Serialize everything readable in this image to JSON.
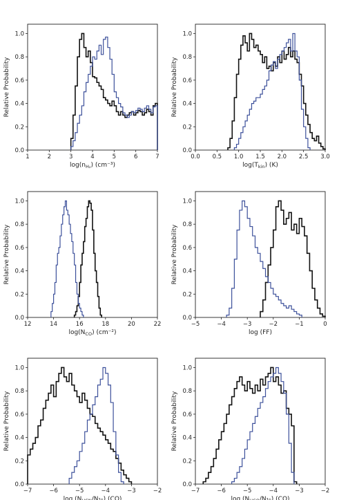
{
  "colors": {
    "series_black": "#111111",
    "series_blue": "#3b4f9a",
    "axis": "#222222"
  },
  "chart_data": [
    {
      "type": "step",
      "xlabel": "log(n",
      "xlabel_sub": "H₂",
      "xlabel_unit": ") (cm⁻³)",
      "ylabel": "Relative Probability",
      "xlim": [
        1,
        7
      ],
      "ylim": [
        0,
        1.08
      ],
      "xticks": [
        "1",
        "2",
        "3",
        "4",
        "5",
        "6",
        "7"
      ],
      "yticks": [
        "0.0",
        "0.2",
        "0.4",
        "0.6",
        "0.8",
        "1.0"
      ],
      "series": [
        {
          "color": "black",
          "x": [
            3.0,
            3.1,
            3.2,
            3.3,
            3.4,
            3.5,
            3.6,
            3.7,
            3.8,
            3.9,
            4.0,
            4.1,
            4.2,
            4.3,
            4.4,
            4.5,
            4.6,
            4.7,
            4.8,
            4.9,
            5.0,
            5.1,
            5.2,
            5.3,
            5.4,
            5.5,
            5.6,
            5.7,
            5.8,
            5.9,
            6.0,
            6.1,
            6.2,
            6.3,
            6.4,
            6.5,
            6.6,
            6.7,
            6.8,
            6.9,
            7.0
          ],
          "y": [
            0.1,
            0.3,
            0.55,
            0.8,
            0.95,
            1.0,
            0.88,
            0.8,
            0.85,
            0.75,
            0.63,
            0.62,
            0.58,
            0.55,
            0.52,
            0.45,
            0.43,
            0.4,
            0.38,
            0.42,
            0.38,
            0.33,
            0.3,
            0.33,
            0.3,
            0.28,
            0.3,
            0.32,
            0.33,
            0.3,
            0.32,
            0.34,
            0.33,
            0.3,
            0.32,
            0.35,
            0.33,
            0.3,
            0.38,
            0.4,
            0.3
          ]
        },
        {
          "color": "blue",
          "x": [
            3.0,
            3.1,
            3.2,
            3.3,
            3.4,
            3.5,
            3.6,
            3.7,
            3.8,
            3.9,
            4.0,
            4.1,
            4.2,
            4.3,
            4.4,
            4.5,
            4.6,
            4.7,
            4.8,
            4.9,
            5.0,
            5.1,
            5.2,
            5.3,
            5.4,
            5.5,
            5.6,
            5.7,
            5.8,
            5.9,
            6.0,
            6.1,
            6.2,
            6.3,
            6.4,
            6.5,
            6.6,
            6.7,
            6.8,
            6.9,
            7.0
          ],
          "y": [
            0.03,
            0.08,
            0.15,
            0.23,
            0.3,
            0.38,
            0.5,
            0.58,
            0.65,
            0.72,
            0.8,
            0.78,
            0.85,
            0.9,
            0.82,
            0.95,
            0.97,
            0.88,
            0.78,
            0.65,
            0.5,
            0.45,
            0.4,
            0.37,
            0.32,
            0.3,
            0.28,
            0.3,
            0.33,
            0.32,
            0.34,
            0.36,
            0.35,
            0.33,
            0.36,
            0.38,
            0.35,
            0.32,
            0.37,
            0.38,
            0.2
          ]
        }
      ]
    },
    {
      "type": "step",
      "xlabel": "log(T",
      "xlabel_sub": "kin",
      "xlabel_unit": ") (K)",
      "ylabel": "Relative Probability",
      "xlim": [
        0,
        3
      ],
      "ylim": [
        0,
        1.08
      ],
      "xticks": [
        "0.0",
        "0.5",
        "1.0",
        "1.5",
        "2.0",
        "2.5",
        "3.0"
      ],
      "yticks": [
        "0.0",
        "0.2",
        "0.4",
        "0.6",
        "0.8",
        "1.0"
      ],
      "series": [
        {
          "color": "black",
          "x": [
            0.75,
            0.8,
            0.85,
            0.9,
            0.95,
            1.0,
            1.05,
            1.1,
            1.15,
            1.2,
            1.25,
            1.3,
            1.35,
            1.4,
            1.45,
            1.5,
            1.55,
            1.6,
            1.65,
            1.7,
            1.75,
            1.8,
            1.85,
            1.9,
            1.95,
            2.0,
            2.05,
            2.1,
            2.15,
            2.2,
            2.25,
            2.3,
            2.35,
            2.4,
            2.45,
            2.5,
            2.55,
            2.6,
            2.65,
            2.7,
            2.75,
            2.8,
            2.85,
            2.9,
            2.95
          ],
          "y": [
            0.02,
            0.1,
            0.25,
            0.45,
            0.65,
            0.78,
            0.9,
            0.98,
            0.92,
            0.85,
            1.0,
            0.95,
            0.88,
            0.9,
            0.85,
            0.82,
            0.75,
            0.8,
            0.7,
            0.72,
            0.68,
            0.75,
            0.72,
            0.8,
            0.75,
            0.85,
            0.78,
            0.82,
            0.88,
            0.8,
            0.85,
            0.78,
            0.75,
            0.65,
            0.55,
            0.4,
            0.3,
            0.22,
            0.15,
            0.1,
            0.08,
            0.12,
            0.06,
            0.03,
            0.01
          ]
        },
        {
          "color": "blue",
          "x": [
            0.9,
            0.95,
            1.0,
            1.05,
            1.1,
            1.15,
            1.2,
            1.25,
            1.3,
            1.35,
            1.4,
            1.45,
            1.5,
            1.55,
            1.6,
            1.65,
            1.7,
            1.75,
            1.8,
            1.85,
            1.9,
            1.95,
            2.0,
            2.05,
            2.1,
            2.15,
            2.2,
            2.25,
            2.3,
            2.35,
            2.4,
            2.45,
            2.5,
            2.55,
            2.6
          ],
          "y": [
            0.02,
            0.05,
            0.1,
            0.15,
            0.2,
            0.25,
            0.3,
            0.35,
            0.4,
            0.42,
            0.45,
            0.45,
            0.48,
            0.52,
            0.55,
            0.6,
            0.68,
            0.73,
            0.76,
            0.7,
            0.78,
            0.82,
            0.85,
            0.88,
            0.92,
            0.95,
            0.85,
            1.0,
            0.85,
            0.8,
            0.6,
            0.35,
            0.2,
            0.1,
            0.02
          ]
        }
      ]
    },
    {
      "type": "step",
      "xlabel": "log(N",
      "xlabel_sub": "CO",
      "xlabel_unit": ") (cm⁻²)",
      "ylabel": "Relative Probability",
      "xlim": [
        12,
        22
      ],
      "ylim": [
        0,
        1.08
      ],
      "xticks": [
        "12",
        "14",
        "16",
        "18",
        "20",
        "22"
      ],
      "yticks": [
        "0.0",
        "0.2",
        "0.4",
        "0.6",
        "0.8",
        "1.0"
      ],
      "series": [
        {
          "color": "black",
          "x": [
            15.6,
            15.7,
            15.8,
            15.9,
            16.0,
            16.1,
            16.2,
            16.3,
            16.4,
            16.5,
            16.6,
            16.7,
            16.8,
            16.9,
            17.0,
            17.1,
            17.2,
            17.3,
            17.4,
            17.5,
            17.6
          ],
          "y": [
            0.02,
            0.05,
            0.1,
            0.18,
            0.3,
            0.45,
            0.55,
            0.65,
            0.78,
            0.85,
            0.95,
            1.0,
            0.98,
            0.92,
            0.75,
            0.55,
            0.4,
            0.3,
            0.18,
            0.08,
            0.02
          ]
        },
        {
          "color": "blue",
          "x": [
            13.8,
            13.9,
            14.0,
            14.1,
            14.2,
            14.3,
            14.4,
            14.5,
            14.6,
            14.7,
            14.8,
            14.9,
            15.0,
            15.1,
            15.2,
            15.3,
            15.4,
            15.5,
            15.6,
            15.7,
            15.8,
            15.9,
            16.0,
            16.1,
            16.2
          ],
          "y": [
            0.05,
            0.12,
            0.2,
            0.3,
            0.45,
            0.55,
            0.6,
            0.7,
            0.8,
            0.88,
            0.95,
            1.0,
            0.92,
            0.88,
            0.8,
            0.72,
            0.65,
            0.55,
            0.45,
            0.3,
            0.2,
            0.12,
            0.08,
            0.05,
            0.02
          ]
        }
      ]
    },
    {
      "type": "step",
      "xlabel": "log (FF)",
      "xlabel_sub": "",
      "xlabel_unit": "",
      "ylabel": "Relative Probability",
      "xlim": [
        -5,
        0
      ],
      "ylim": [
        0,
        1.08
      ],
      "xticks": [
        "−5",
        "−4",
        "−3",
        "−2",
        "−1",
        "0"
      ],
      "yticks": [
        "0.0",
        "0.2",
        "0.4",
        "0.6",
        "0.8",
        "1.0"
      ],
      "series": [
        {
          "color": "black",
          "x": [
            -2.5,
            -2.4,
            -2.3,
            -2.2,
            -2.1,
            -2.0,
            -1.9,
            -1.8,
            -1.7,
            -1.6,
            -1.5,
            -1.4,
            -1.3,
            -1.2,
            -1.1,
            -1.0,
            -0.9,
            -0.8,
            -0.7,
            -0.6,
            -0.5,
            -0.4,
            -0.3,
            -0.2,
            -0.1
          ],
          "y": [
            0.05,
            0.15,
            0.3,
            0.45,
            0.6,
            0.75,
            0.95,
            1.0,
            0.92,
            0.8,
            0.85,
            0.9,
            0.75,
            0.8,
            0.72,
            0.85,
            0.78,
            0.7,
            0.55,
            0.4,
            0.25,
            0.15,
            0.08,
            0.03,
            0.01
          ]
        },
        {
          "color": "blue",
          "x": [
            -3.8,
            -3.7,
            -3.6,
            -3.5,
            -3.4,
            -3.3,
            -3.2,
            -3.1,
            -3.0,
            -2.9,
            -2.8,
            -2.7,
            -2.6,
            -2.5,
            -2.4,
            -2.3,
            -2.2,
            -2.1,
            -2.0,
            -1.9,
            -1.8,
            -1.7,
            -1.6,
            -1.5,
            -1.4,
            -1.3,
            -1.2,
            -1.1,
            -1.0
          ],
          "y": [
            0.02,
            0.08,
            0.25,
            0.5,
            0.75,
            0.92,
            1.0,
            0.95,
            0.85,
            0.78,
            0.7,
            0.6,
            0.55,
            0.48,
            0.42,
            0.35,
            0.3,
            0.25,
            0.2,
            0.18,
            0.15,
            0.12,
            0.1,
            0.08,
            0.1,
            0.07,
            0.05,
            0.03,
            0.02
          ]
        }
      ]
    },
    {
      "type": "step",
      "xlabel": "log (N",
      "xlabel_sub": "HCN",
      "xlabel_unit": "/N₁ₙ) (CO)",
      "ylabel": "Relative Probability",
      "xlim": [
        -7,
        -2
      ],
      "ylim": [
        0,
        1.08
      ],
      "xticks": [
        "−7",
        "−6",
        "−5",
        "−4",
        "−3",
        "−2"
      ],
      "yticks": [
        "0.0",
        "0.2",
        "0.4",
        "0.6",
        "0.8",
        "1.0"
      ],
      "series": [
        {
          "color": "black",
          "x": [
            -7.0,
            -6.9,
            -6.8,
            -6.7,
            -6.6,
            -6.5,
            -6.4,
            -6.3,
            -6.2,
            -6.1,
            -6.0,
            -5.9,
            -5.8,
            -5.7,
            -5.6,
            -5.5,
            -5.4,
            -5.3,
            -5.2,
            -5.1,
            -5.0,
            -4.9,
            -4.8,
            -4.7,
            -4.6,
            -4.5,
            -4.4,
            -4.3,
            -4.2,
            -4.1,
            -4.0,
            -3.9,
            -3.8,
            -3.7,
            -3.6,
            -3.5,
            -3.4,
            -3.3,
            -3.2,
            -3.1
          ],
          "y": [
            0.25,
            0.3,
            0.35,
            0.4,
            0.5,
            0.55,
            0.65,
            0.72,
            0.78,
            0.85,
            0.75,
            0.88,
            0.95,
            1.0,
            0.92,
            0.88,
            0.95,
            0.85,
            0.8,
            0.75,
            0.7,
            0.78,
            0.72,
            0.65,
            0.6,
            0.58,
            0.52,
            0.48,
            0.45,
            0.42,
            0.38,
            0.35,
            0.3,
            0.28,
            0.22,
            0.18,
            0.12,
            0.08,
            0.05,
            0.02
          ]
        },
        {
          "color": "blue",
          "x": [
            -5.4,
            -5.3,
            -5.2,
            -5.1,
            -5.0,
            -4.9,
            -4.8,
            -4.7,
            -4.6,
            -4.5,
            -4.4,
            -4.3,
            -4.2,
            -4.1,
            -4.0,
            -3.9,
            -3.8,
            -3.7,
            -3.6,
            -3.5,
            -3.4
          ],
          "y": [
            0.05,
            0.1,
            0.15,
            0.2,
            0.28,
            0.35,
            0.45,
            0.55,
            0.6,
            0.68,
            0.75,
            0.85,
            0.9,
            1.0,
            0.95,
            0.85,
            0.7,
            0.45,
            0.25,
            0.1,
            0.02
          ]
        }
      ]
    },
    {
      "type": "step",
      "xlabel": "log (N",
      "xlabel_sub": "HCO",
      "xlabel_unit": "/N₁ₙ) (CO)",
      "ylabel": "Relative Probability",
      "xlim": [
        -7,
        -2
      ],
      "ylim": [
        0,
        1.08
      ],
      "xticks": [
        "−7",
        "−6",
        "−5",
        "−4",
        "−3",
        "−2"
      ],
      "yticks": [
        "0.0",
        "0.2",
        "0.4",
        "0.6",
        "0.8",
        "1.0"
      ],
      "series": [
        {
          "color": "black",
          "x": [
            -6.7,
            -6.6,
            -6.5,
            -6.4,
            -6.3,
            -6.2,
            -6.1,
            -6.0,
            -5.9,
            -5.8,
            -5.7,
            -5.6,
            -5.5,
            -5.4,
            -5.3,
            -5.2,
            -5.1,
            -5.0,
            -4.9,
            -4.8,
            -4.7,
            -4.6,
            -4.5,
            -4.4,
            -4.3,
            -4.2,
            -4.1,
            -4.0,
            -3.9,
            -3.8,
            -3.7,
            -3.6,
            -3.5,
            -3.4,
            -3.3,
            -3.2
          ],
          "y": [
            0.02,
            0.05,
            0.1,
            0.15,
            0.22,
            0.3,
            0.38,
            0.45,
            0.52,
            0.6,
            0.68,
            0.75,
            0.82,
            0.88,
            0.92,
            0.85,
            0.8,
            0.88,
            0.82,
            0.78,
            0.85,
            0.8,
            0.9,
            0.85,
            0.92,
            0.95,
            1.0,
            0.88,
            0.92,
            0.85,
            0.78,
            0.8,
            0.65,
            0.6,
            0.5,
            0.02
          ]
        },
        {
          "color": "blue",
          "x": [
            -5.6,
            -5.5,
            -5.4,
            -5.3,
            -5.2,
            -5.1,
            -5.0,
            -4.9,
            -4.8,
            -4.7,
            -4.6,
            -4.5,
            -4.4,
            -4.3,
            -4.2,
            -4.1,
            -4.0,
            -3.9,
            -3.8,
            -3.7,
            -3.6,
            -3.5,
            -3.4,
            -3.3
          ],
          "y": [
            0.02,
            0.05,
            0.1,
            0.15,
            0.22,
            0.3,
            0.38,
            0.45,
            0.52,
            0.58,
            0.65,
            0.7,
            0.75,
            0.82,
            0.88,
            0.92,
            0.95,
            1.0,
            0.95,
            0.88,
            0.78,
            0.6,
            0.35,
            0.1
          ]
        }
      ]
    }
  ]
}
